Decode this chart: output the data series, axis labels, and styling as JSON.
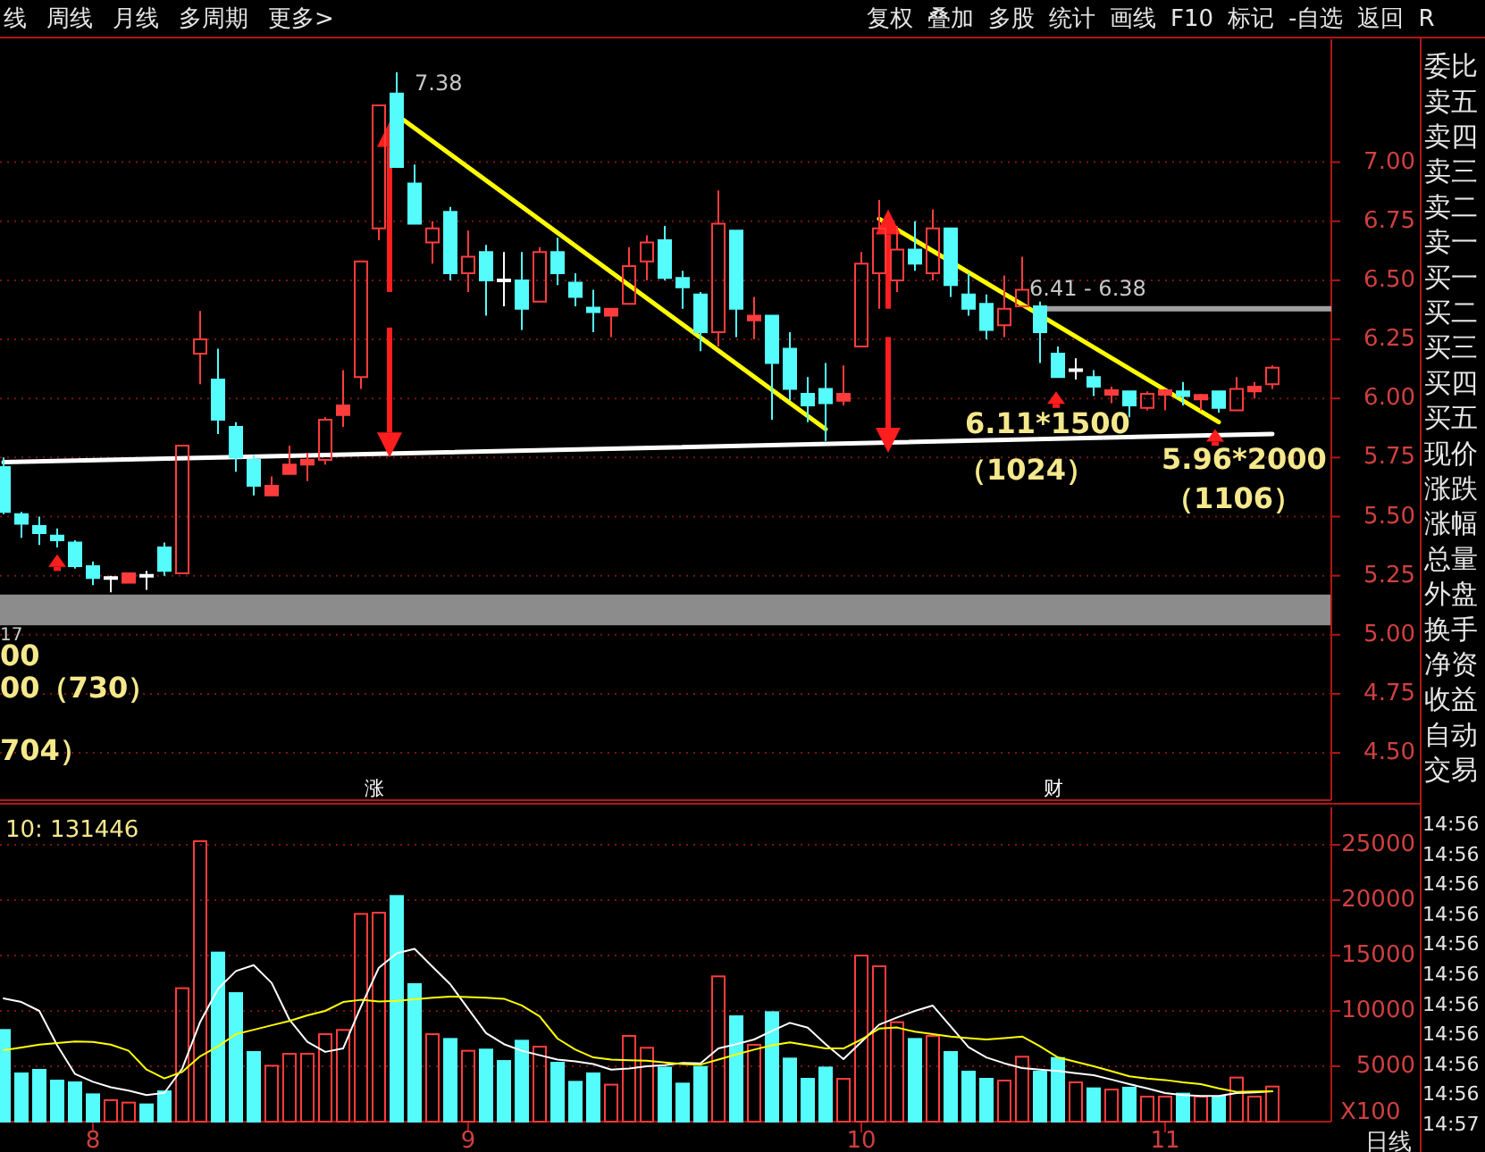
{
  "chart_data": [
    {
      "type": "candlestick",
      "categories": [
        null,
        null,
        null,
        null,
        null,
        "8",
        null,
        null,
        null,
        null,
        null,
        null,
        null,
        null,
        null,
        null,
        null,
        null,
        null,
        null,
        null,
        null,
        null,
        null,
        null,
        null,
        "9",
        null,
        null,
        null,
        null,
        null,
        null,
        null,
        null,
        null,
        null,
        null,
        null,
        null,
        null,
        null,
        null,
        null,
        null,
        null,
        null,
        null,
        "10",
        null,
        null,
        null,
        null,
        null,
        null,
        null,
        null,
        null,
        null,
        null,
        null,
        null,
        null,
        null,
        null,
        "11",
        null,
        null,
        null,
        null,
        null,
        null
      ],
      "ohlc": [
        [
          5.71,
          5.75,
          5.51,
          5.52
        ],
        [
          5.51,
          5.52,
          5.41,
          5.47
        ],
        [
          5.46,
          5.5,
          5.38,
          5.43
        ],
        [
          5.42,
          5.45,
          5.37,
          5.4
        ],
        [
          5.39,
          5.4,
          5.28,
          5.29
        ],
        [
          5.29,
          5.31,
          5.21,
          5.24
        ],
        [
          5.24,
          5.25,
          5.18,
          5.24
        ],
        [
          5.22,
          5.26,
          5.22,
          5.26
        ],
        [
          5.25,
          5.27,
          5.19,
          5.25
        ],
        [
          5.37,
          5.39,
          5.25,
          5.27
        ],
        [
          5.26,
          5.8,
          5.26,
          5.8
        ],
        [
          6.19,
          6.37,
          6.06,
          6.25
        ],
        [
          6.08,
          6.21,
          5.85,
          5.91
        ],
        [
          5.88,
          5.9,
          5.69,
          5.75
        ],
        [
          5.74,
          5.76,
          5.59,
          5.63
        ],
        [
          5.59,
          5.67,
          5.59,
          5.63
        ],
        [
          5.68,
          5.8,
          5.68,
          5.72
        ],
        [
          5.72,
          5.77,
          5.65,
          5.74
        ],
        [
          5.74,
          5.92,
          5.72,
          5.91
        ],
        [
          5.93,
          6.12,
          5.88,
          5.97
        ],
        [
          6.09,
          6.58,
          6.04,
          6.58
        ],
        [
          6.72,
          7.24,
          6.67,
          7.24
        ],
        [
          7.29,
          7.38,
          6.98,
          6.98
        ],
        [
          6.91,
          6.99,
          6.74,
          6.74
        ],
        [
          6.66,
          6.75,
          6.57,
          6.72
        ],
        [
          6.79,
          6.81,
          6.5,
          6.53
        ],
        [
          6.53,
          6.71,
          6.45,
          6.6
        ],
        [
          6.62,
          6.65,
          6.35,
          6.5
        ],
        [
          6.5,
          6.62,
          6.39,
          6.5
        ],
        [
          6.5,
          6.62,
          6.29,
          6.38
        ],
        [
          6.41,
          6.64,
          6.41,
          6.62
        ],
        [
          6.62,
          6.68,
          6.48,
          6.53
        ],
        [
          6.49,
          6.53,
          6.39,
          6.43
        ],
        [
          6.38,
          6.46,
          6.28,
          6.37
        ],
        [
          6.35,
          6.38,
          6.26,
          6.38
        ],
        [
          6.4,
          6.64,
          6.4,
          6.56
        ],
        [
          6.58,
          6.69,
          6.5,
          6.66
        ],
        [
          6.67,
          6.73,
          6.5,
          6.51
        ],
        [
          6.51,
          6.54,
          6.38,
          6.47
        ],
        [
          6.44,
          6.45,
          6.2,
          6.28
        ],
        [
          6.28,
          6.88,
          6.22,
          6.74
        ],
        [
          6.71,
          6.71,
          6.26,
          6.38
        ],
        [
          6.33,
          6.43,
          6.25,
          6.35
        ],
        [
          6.35,
          6.35,
          5.91,
          6.15
        ],
        [
          6.21,
          6.28,
          5.99,
          6.04
        ],
        [
          6.02,
          6.09,
          5.9,
          5.97
        ],
        [
          6.04,
          6.15,
          5.82,
          5.98
        ],
        [
          5.99,
          6.14,
          5.97,
          6.02
        ],
        [
          6.22,
          6.62,
          6.22,
          6.57
        ],
        [
          6.53,
          6.84,
          6.38,
          6.72
        ],
        [
          6.5,
          6.73,
          6.45,
          6.63
        ],
        [
          6.63,
          6.75,
          6.54,
          6.57
        ],
        [
          6.53,
          6.8,
          6.5,
          6.72
        ],
        [
          6.72,
          6.72,
          6.43,
          6.48
        ],
        [
          6.44,
          6.53,
          6.35,
          6.38
        ],
        [
          6.4,
          6.44,
          6.25,
          6.29
        ],
        [
          6.31,
          6.52,
          6.26,
          6.38
        ],
        [
          6.39,
          6.6,
          6.39,
          6.46
        ],
        [
          6.39,
          6.41,
          6.15,
          6.28
        ],
        [
          6.19,
          6.22,
          6.09,
          6.09
        ],
        [
          6.12,
          6.17,
          6.08,
          6.12
        ],
        [
          6.09,
          6.12,
          6.01,
          6.05
        ],
        [
          6.02,
          6.05,
          5.98,
          6.03
        ],
        [
          6.03,
          6.03,
          5.92,
          5.97
        ],
        [
          5.96,
          6.03,
          5.95,
          6.02
        ],
        [
          6.02,
          6.04,
          5.95,
          6.03
        ],
        [
          6.03,
          6.07,
          5.97,
          6.01
        ],
        [
          6.0,
          6.02,
          5.95,
          6.01
        ],
        [
          6.03,
          6.03,
          5.94,
          5.96
        ],
        [
          5.95,
          6.09,
          5.95,
          6.04
        ],
        [
          6.03,
          6.07,
          6.0,
          6.05
        ],
        [
          6.06,
          6.14,
          6.04,
          6.13
        ]
      ],
      "colors": [
        "#54fcfc",
        "#54fcfc",
        "#54fcfc",
        "#54fcfc",
        "#54fcfc",
        "#54fcfc",
        "#ffffff",
        "#ff3c3c",
        "#ffffff",
        "#54fcfc",
        "#ff3c3c",
        "#ff3c3c",
        "#54fcfc",
        "#54fcfc",
        "#54fcfc",
        "#ff3c3c",
        "#ff3c3c",
        "#ff3c3c",
        "#ff3c3c",
        "#ff3c3c",
        "#ff3c3c",
        "#ff3c3c",
        "#54fcfc",
        "#54fcfc",
        "#ff3c3c",
        "#54fcfc",
        "#ff3c3c",
        "#54fcfc",
        "#ffffff",
        "#54fcfc",
        "#ff3c3c",
        "#54fcfc",
        "#54fcfc",
        "#54fcfc",
        "#ff3c3c",
        "#ff3c3c",
        "#ff3c3c",
        "#54fcfc",
        "#54fcfc",
        "#54fcfc",
        "#ff3c3c",
        "#54fcfc",
        "#ff3c3c",
        "#54fcfc",
        "#54fcfc",
        "#54fcfc",
        "#54fcfc",
        "#ff3c3c",
        "#ff3c3c",
        "#ff3c3c",
        "#ff3c3c",
        "#54fcfc",
        "#ff3c3c",
        "#54fcfc",
        "#54fcfc",
        "#54fcfc",
        "#ff3c3c",
        "#ff3c3c",
        "#54fcfc",
        "#54fcfc",
        "#ffffff",
        "#54fcfc",
        "#ff3c3c",
        "#54fcfc",
        "#ff3c3c",
        "#ff3c3c",
        "#54fcfc",
        "#ff3c3c",
        "#54fcfc",
        "#ff3c3c",
        "#ff3c3c",
        "#ff3c3c"
      ],
      "ylim": [
        4.3,
        7.52
      ],
      "yticks": [
        {
          "value": 4.5,
          "label": "4.50"
        },
        {
          "value": 4.75,
          "label": "4.75"
        },
        {
          "value": 5,
          "label": "5.00"
        },
        {
          "value": 5.25,
          "label": "5.25"
        },
        {
          "value": 5.5,
          "label": "5.50"
        },
        {
          "value": 5.75,
          "label": "5.75"
        },
        {
          "value": 6,
          "label": "6.00"
        },
        {
          "value": 6.25,
          "label": "6.25"
        },
        {
          "value": 6.5,
          "label": "6.50"
        },
        {
          "value": 6.75,
          "label": "6.75"
        },
        {
          "value": 7,
          "label": "7.00"
        }
      ],
      "grid": "y",
      "tick_labels": "y",
      "series": [
        {
          "type": "line",
          "color": "#ffffff",
          "values": [
            5.73,
            null,
            null,
            null,
            null,
            null,
            null,
            null,
            null,
            null,
            null,
            null,
            null,
            null,
            null,
            null,
            null,
            null,
            null,
            null,
            null,
            null,
            null,
            null,
            null,
            null,
            null,
            null,
            null,
            null,
            null,
            null,
            null,
            null,
            null,
            null,
            null,
            null,
            null,
            null,
            null,
            null,
            null,
            null,
            null,
            null,
            null,
            null,
            null,
            null,
            null,
            null,
            null,
            null,
            null,
            null,
            null,
            null,
            null,
            null,
            null,
            null,
            null,
            null,
            null,
            null,
            null,
            null,
            null,
            null,
            null,
            5.85
          ]
        },
        {
          "type": "line",
          "color": "#ffff00",
          "values": [
            null,
            null,
            null,
            null,
            null,
            null,
            null,
            null,
            null,
            null,
            null,
            null,
            null,
            null,
            null,
            null,
            null,
            null,
            null,
            null,
            null,
            null,
            7.2,
            null,
            null,
            null,
            null,
            null,
            null,
            null,
            null,
            null,
            null,
            null,
            null,
            null,
            null,
            null,
            null,
            null,
            null,
            null,
            null,
            null,
            null,
            null,
            5.87,
            null,
            null,
            null,
            null,
            null,
            null,
            null,
            null,
            null,
            null,
            null,
            null,
            null,
            null,
            null,
            null,
            null,
            null,
            null,
            null,
            null,
            null,
            null,
            null,
            null
          ]
        },
        {
          "type": "line",
          "color": "#ffff00",
          "values": [
            null,
            null,
            null,
            null,
            null,
            null,
            null,
            null,
            null,
            null,
            null,
            null,
            null,
            null,
            null,
            null,
            null,
            null,
            null,
            null,
            null,
            null,
            null,
            null,
            null,
            null,
            null,
            null,
            null,
            null,
            null,
            null,
            null,
            null,
            null,
            null,
            null,
            null,
            null,
            null,
            null,
            null,
            null,
            null,
            null,
            null,
            null,
            null,
            null,
            6.76,
            null,
            null,
            null,
            null,
            null,
            null,
            null,
            null,
            null,
            null,
            null,
            null,
            null,
            null,
            null,
            null,
            null,
            null,
            5.9,
            null,
            null,
            null
          ]
        }
      ],
      "ref_lines": [
        {
          "axis": "y",
          "value": 6.38,
          "color": "#a0a0a0"
        }
      ],
      "bands": [
        {
          "axis": "y",
          "from": 5.04,
          "to": 5.17,
          "color": "#8c8c8c"
        }
      ],
      "annotations": [
        "7.38",
        "6.41 - 6.38",
        "6.11*1500",
        "（1024）",
        "5.96*2000",
        "（1106）",
        "17",
        "00",
        "00（730）",
        "704）",
        "涨",
        "财"
      ]
    },
    {
      "type": "bar",
      "categories": [
        null,
        null,
        null,
        null,
        null,
        "8",
        null,
        null,
        null,
        null,
        null,
        null,
        null,
        null,
        null,
        null,
        null,
        null,
        null,
        null,
        null,
        null,
        null,
        null,
        null,
        null,
        "9",
        null,
        null,
        null,
        null,
        null,
        null,
        null,
        null,
        null,
        null,
        null,
        null,
        null,
        null,
        null,
        null,
        null,
        null,
        null,
        null,
        null,
        "10",
        null,
        null,
        null,
        null,
        null,
        null,
        null,
        null,
        null,
        null,
        null,
        null,
        null,
        null,
        null,
        null,
        "11",
        null,
        null,
        null,
        null,
        null,
        null
      ],
      "values": [
        8280,
        4360,
        4680,
        3710,
        3550,
        2470,
        1940,
        1720,
        1560,
        2740,
        12050,
        25330,
        15270,
        11610,
        6290,
        5050,
        6130,
        6130,
        7900,
        8280,
        18760,
        18870,
        20380,
        12420,
        7900,
        7470,
        6400,
        6510,
        5480,
        7310,
        6770,
        5320,
        3600,
        4360,
        3340,
        7740,
        6670,
        4890,
        3440,
        4950,
        13120,
        9520,
        6940,
        9890,
        5700,
        3870,
        4890,
        3870,
        15000,
        14030,
        8980,
        7470,
        7740,
        6290,
        4520,
        3870,
        3710,
        5860,
        4520,
        5750,
        3550,
        3010,
        2900,
        3070,
        2260,
        2260,
        2530,
        2260,
        2260,
        3980,
        2260,
        3170
      ],
      "colors": [
        "#54fcfc",
        "#54fcfc",
        "#54fcfc",
        "#54fcfc",
        "#54fcfc",
        "#54fcfc",
        "#ff3c3c",
        "#ff3c3c",
        "#54fcfc",
        "#54fcfc",
        "#ff3c3c",
        "#ff3c3c",
        "#54fcfc",
        "#54fcfc",
        "#54fcfc",
        "#ff3c3c",
        "#ff3c3c",
        "#ff3c3c",
        "#ff3c3c",
        "#ff3c3c",
        "#ff3c3c",
        "#ff3c3c",
        "#54fcfc",
        "#54fcfc",
        "#ff3c3c",
        "#54fcfc",
        "#ff3c3c",
        "#54fcfc",
        "#54fcfc",
        "#54fcfc",
        "#ff3c3c",
        "#54fcfc",
        "#54fcfc",
        "#54fcfc",
        "#ff3c3c",
        "#ff3c3c",
        "#ff3c3c",
        "#54fcfc",
        "#54fcfc",
        "#54fcfc",
        "#ff3c3c",
        "#54fcfc",
        "#ff3c3c",
        "#54fcfc",
        "#54fcfc",
        "#54fcfc",
        "#54fcfc",
        "#ff3c3c",
        "#ff3c3c",
        "#ff3c3c",
        "#ff3c3c",
        "#54fcfc",
        "#ff3c3c",
        "#54fcfc",
        "#54fcfc",
        "#54fcfc",
        "#ff3c3c",
        "#ff3c3c",
        "#54fcfc",
        "#54fcfc",
        "#ff3c3c",
        "#54fcfc",
        "#ff3c3c",
        "#54fcfc",
        "#ff3c3c",
        "#ff3c3c",
        "#54fcfc",
        "#ff3c3c",
        "#54fcfc",
        "#ff3c3c",
        "#ff3c3c",
        "#ff3c3c"
      ],
      "series": [
        {
          "type": "line",
          "color": "#ffffff",
          "values": [
            11130,
            10800,
            10000,
            6900,
            4300,
            3600,
            3100,
            2800,
            2400,
            2600,
            4800,
            9000,
            12000,
            13600,
            14140,
            12530,
            9200,
            7200,
            6300,
            6610,
            10400,
            13900,
            15200,
            15600,
            14000,
            12400,
            10200,
            8000,
            7000,
            6400,
            6000,
            5600,
            5450,
            5200,
            4700,
            4800,
            5000,
            5100,
            5300,
            5270,
            6610,
            7000,
            7420,
            8200,
            8920,
            8490,
            7000,
            5640,
            7200,
            8760,
            9410,
            10000,
            10480,
            8600,
            6720,
            5800,
            5270,
            4840,
            4700,
            4570,
            4380,
            4190,
            3800,
            3390,
            3000,
            2580,
            2400,
            2310,
            2310,
            2580,
            2650,
            2740
          ]
        },
        {
          "type": "line",
          "color": "#ffff00",
          "values": [
            6450,
            6700,
            6950,
            7100,
            7230,
            7200,
            6950,
            6400,
            4700,
            3900,
            4500,
            5900,
            6800,
            7900,
            8300,
            8700,
            9100,
            9600,
            10000,
            10800,
            11000,
            10850,
            10900,
            11050,
            11200,
            11300,
            11250,
            11200,
            11100,
            10500,
            9500,
            7500,
            6500,
            5800,
            5600,
            5550,
            5500,
            5350,
            5200,
            5150,
            5600,
            6070,
            6500,
            6900,
            7150,
            6900,
            6610,
            6610,
            7420,
            8400,
            8500,
            8120,
            7900,
            7690,
            7550,
            7420,
            7550,
            7690,
            6800,
            5800,
            5400,
            5000,
            4550,
            4090,
            3900,
            3760,
            3550,
            3390,
            3000,
            2690,
            2720,
            2740
          ]
        }
      ],
      "ylim": [
        0,
        28390
      ],
      "yticks": [
        5000,
        10000,
        15000,
        20000,
        25000
      ],
      "grid": "y",
      "annotations": [
        "10: 131446",
        "X100",
        "日线"
      ]
    },
    {
      "type": "other",
      "annotations": [
        "线",
        "周线",
        "月线",
        "多周期",
        "更多>"
      ]
    },
    {
      "type": "other",
      "annotations": [
        "复权",
        "叠加",
        "多股",
        "统计",
        "画线",
        "F10",
        "标记",
        "-自选",
        "返回",
        "R"
      ]
    },
    {
      "type": "other",
      "annotations": [
        "委比",
        "卖五",
        "卖四",
        "卖三",
        "卖二",
        "卖一",
        "买一",
        "买二",
        "买三",
        "买四",
        "买五",
        "现价",
        "涨跌",
        "涨幅",
        "总量",
        "外盘",
        "换手",
        "净资",
        "收益",
        "自动",
        "交易"
      ]
    },
    {
      "type": "other",
      "annotations": [
        "14:56",
        "14:56",
        "14:56",
        "14:56",
        "14:56",
        "14:56",
        "14:56",
        "14:56",
        "14:56",
        "14:56",
        "14:57"
      ]
    }
  ]
}
